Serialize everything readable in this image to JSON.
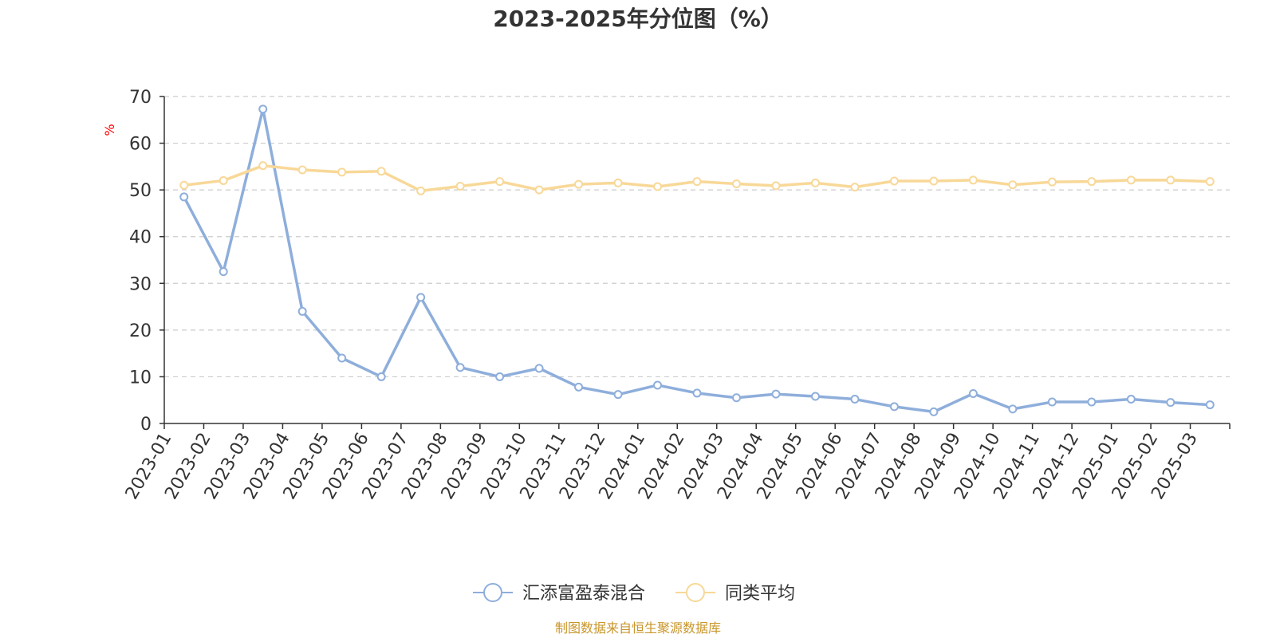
{
  "chart_data": {
    "type": "line",
    "title": "2023-2025年分位图（%）",
    "ylabel": "%",
    "xlabel": "",
    "ylim": [
      0,
      70
    ],
    "yticks": [
      "0",
      "10",
      "20",
      "30",
      "40",
      "50",
      "60",
      "70"
    ],
    "grid": true,
    "legend_position": "bottom",
    "categories": [
      "2023-01",
      "2023-02",
      "2023-03",
      "2023-04",
      "2023-05",
      "2023-06",
      "2023-07",
      "2023-08",
      "2023-09",
      "2023-10",
      "2023-11",
      "2023-12",
      "2024-01",
      "2024-02",
      "2024-03",
      "2024-04",
      "2024-05",
      "2024-06",
      "2024-07",
      "2024-08",
      "2024-09",
      "2024-10",
      "2024-11",
      "2024-12",
      "2025-01",
      "2025-02",
      "2025-03"
    ],
    "series": [
      {
        "name": "汇添富盈泰混合",
        "color": "#8eaedb",
        "values": [
          48.5,
          32.5,
          67.3,
          24.0,
          14.0,
          10.0,
          27.0,
          12.0,
          10.0,
          11.8,
          7.8,
          6.2,
          8.2,
          6.5,
          5.5,
          6.3,
          5.8,
          5.2,
          3.6,
          2.5,
          6.4,
          3.1,
          4.6,
          4.6,
          5.2,
          4.5,
          4.0
        ]
      },
      {
        "name": "同类平均",
        "color": "#f8d898",
        "values": [
          51.0,
          52.0,
          55.2,
          54.3,
          53.8,
          54.0,
          49.8,
          50.8,
          51.8,
          50.0,
          51.2,
          51.5,
          50.7,
          51.8,
          51.3,
          50.9,
          51.5,
          50.6,
          51.9,
          51.9,
          52.1,
          51.1,
          51.7,
          51.8,
          52.1,
          52.1,
          51.8
        ]
      }
    ]
  },
  "footer": {
    "source_text": "制图数据来自恒生聚源数据库"
  }
}
